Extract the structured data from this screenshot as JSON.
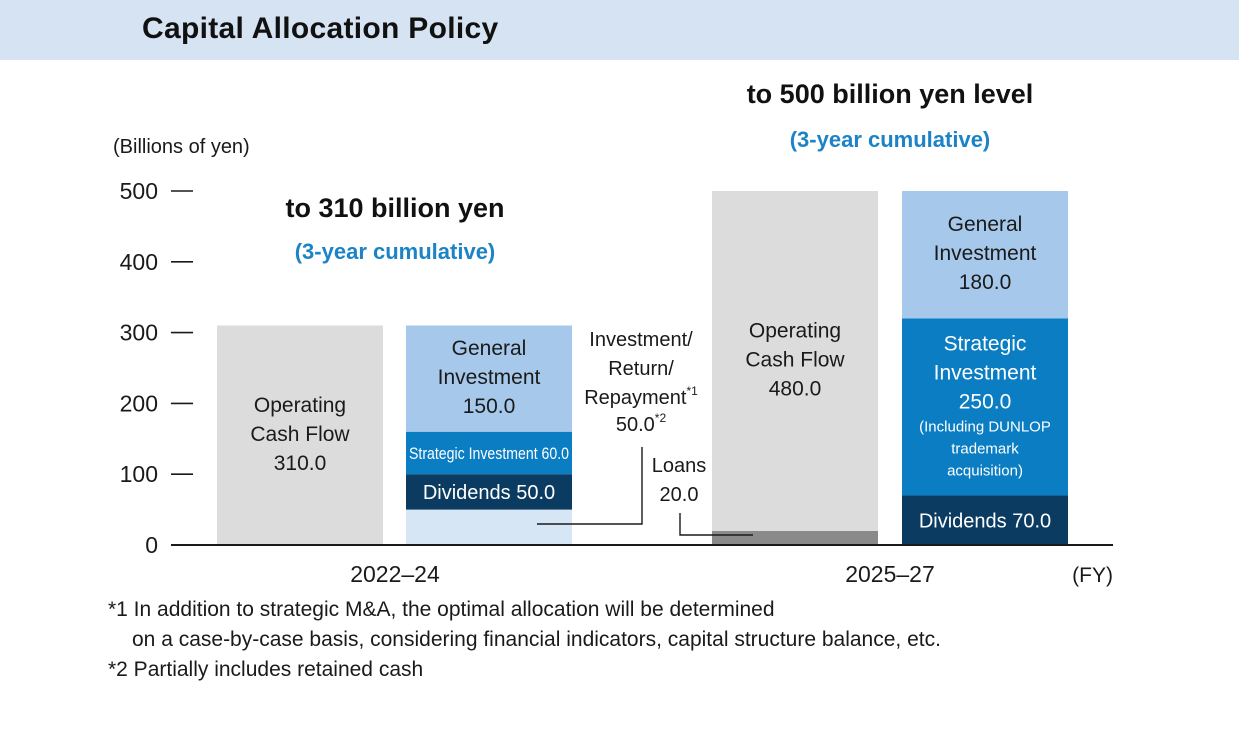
{
  "page": {
    "title": "Capital Allocation Policy",
    "footnotes": [
      "*1 In addition to strategic M&A, the optimal allocation will be determined",
      "on a case-by-case basis, considering financial indicators, capital structure balance, etc.",
      "*2 Partially includes retained cash"
    ]
  },
  "colors": {
    "operating_cf": "#dcdcdc",
    "loans": "#8a8a8a",
    "general": "#a6c9eb",
    "strategic": "#0a7dc3",
    "dividends": "#0b3b60",
    "retained": "#d6e6f4",
    "accent_blue": "#1b83c6"
  },
  "chart_data": {
    "type": "bar",
    "stacked": true,
    "ylabel": "(Billions of yen)",
    "xlabel": "(FY)",
    "ylim": [
      0,
      500
    ],
    "yticks": [
      0,
      100,
      200,
      300,
      400,
      500
    ],
    "grid": false,
    "groups": [
      {
        "period": "2022–24",
        "heading": "to 310 billion yen",
        "subheading": "(3-year cumulative)",
        "bars": [
          {
            "id": "cf-2022",
            "segments": [
              {
                "name": "Operating Cash Flow",
                "value": 310.0,
                "color_key": "operating_cf",
                "label": [
                  "Operating",
                  "Cash Flow",
                  "310.0"
                ]
              }
            ]
          },
          {
            "id": "alloc-2022",
            "segments": [
              {
                "name": "Investment/Return/Repayment",
                "value": 50.0,
                "color_key": "retained",
                "label": []
              },
              {
                "name": "Dividends",
                "value": 50.0,
                "color_key": "dividends",
                "label": [
                  "Dividends 50.0"
                ]
              },
              {
                "name": "Strategic Investment",
                "value": 60.0,
                "color_key": "strategic",
                "label": [
                  "Strategic Investment 60.0"
                ],
                "small": true
              },
              {
                "name": "General Investment",
                "value": 150.0,
                "color_key": "general",
                "label": [
                  "General",
                  "Investment",
                  "150.0"
                ]
              }
            ]
          }
        ]
      },
      {
        "period": "2025–27",
        "heading": "to 500 billion yen level",
        "subheading": "(3-year cumulative)",
        "bars": [
          {
            "id": "cf-2025",
            "segments": [
              {
                "name": "Loans",
                "value": 20.0,
                "color_key": "loans",
                "label": []
              },
              {
                "name": "Operating Cash Flow",
                "value": 480.0,
                "color_key": "operating_cf",
                "label": [
                  "Operating",
                  "Cash Flow",
                  "480.0"
                ]
              }
            ]
          },
          {
            "id": "alloc-2025",
            "segments": [
              {
                "name": "Dividends",
                "value": 70.0,
                "color_key": "dividends",
                "label": [
                  "Dividends 70.0"
                ]
              },
              {
                "name": "Strategic Investment",
                "value": 250.0,
                "color_key": "strategic",
                "label": [
                  "Strategic",
                  "Investment",
                  "250.0"
                ],
                "note": [
                  "(Including DUNLOP",
                  "trademark",
                  "acquisition)"
                ]
              },
              {
                "name": "General Investment",
                "value": 180.0,
                "color_key": "general",
                "label": [
                  "General",
                  "Investment",
                  "180.0"
                ]
              }
            ]
          }
        ]
      }
    ],
    "annotations": {
      "investment": {
        "lines": [
          "Investment/",
          "Return/",
          "Repayment"
        ],
        "sup": "*1",
        "value": "50.0",
        "value_sup": "*2"
      },
      "loans": {
        "lines": [
          "Loans",
          "20.0"
        ]
      }
    }
  }
}
